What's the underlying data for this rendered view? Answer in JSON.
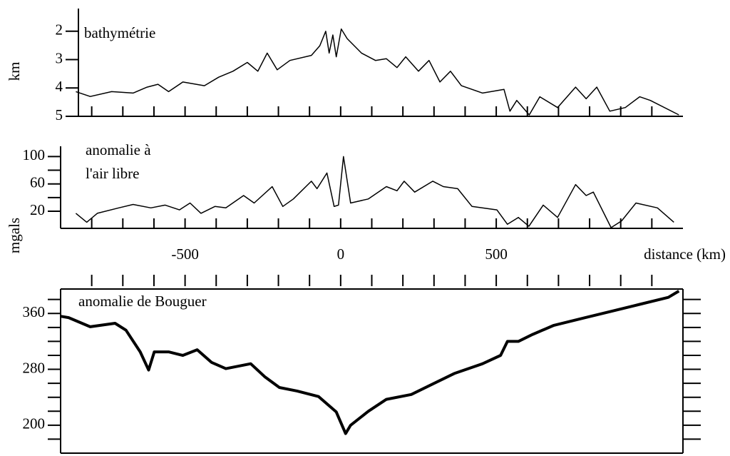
{
  "chart_data": [
    {
      "type": "line",
      "title": "bathymétrie",
      "ylabel": "km",
      "color": "#000000",
      "xlim": [
        -900,
        1100
      ],
      "ylim": [
        5,
        1.2
      ],
      "yticks": [
        2,
        3,
        4,
        5
      ],
      "xminor": [
        -800,
        -700,
        -600,
        -500,
        -400,
        -300,
        -200,
        -100,
        0,
        100,
        200,
        300,
        400,
        500,
        600,
        700,
        800,
        900,
        1000
      ],
      "x": [
        -851,
        -805,
        -736,
        -667,
        -622,
        -587,
        -553,
        -507,
        -438,
        -392,
        -346,
        -300,
        -266,
        -236,
        -204,
        -163,
        -94,
        -67,
        -48,
        -37,
        -25,
        -14,
        2,
        21,
        67,
        112,
        147,
        181,
        209,
        250,
        284,
        319,
        353,
        388,
        456,
        525,
        544,
        566,
        606,
        640,
        697,
        755,
        789,
        823,
        865,
        915,
        961,
        995,
        1087
      ],
      "values": [
        4.13,
        4.3,
        4.13,
        4.18,
        3.97,
        3.87,
        4.13,
        3.79,
        3.92,
        3.62,
        3.41,
        3.1,
        3.41,
        2.77,
        3.36,
        3.03,
        2.85,
        2.51,
        2.0,
        2.77,
        2.13,
        2.9,
        1.92,
        2.26,
        2.77,
        3.03,
        2.97,
        3.28,
        2.9,
        3.41,
        3.03,
        3.79,
        3.41,
        3.92,
        4.18,
        4.05,
        4.82,
        4.44,
        4.95,
        4.31,
        4.69,
        3.97,
        4.38,
        3.97,
        4.82,
        4.69,
        4.31,
        4.44,
        4.95
      ]
    },
    {
      "type": "line",
      "title": [
        "anomalie à",
        "l'air libre"
      ],
      "ylabel": "mgals",
      "xlabel": "distance (km)",
      "color": "#000000",
      "xlim": [
        -900,
        1100
      ],
      "ylim": [
        -5,
        115
      ],
      "yticks": [
        20,
        60,
        100
      ],
      "yminor": [
        40,
        80
      ],
      "xticks": [
        -500,
        0,
        500
      ],
      "xminor": [
        -800,
        -700,
        -600,
        -500,
        -400,
        -300,
        -200,
        -100,
        0,
        100,
        200,
        300,
        400,
        500,
        600,
        700,
        800,
        900,
        1000
      ],
      "x": [
        -851,
        -816,
        -782,
        -713,
        -667,
        -610,
        -564,
        -518,
        -484,
        -449,
        -404,
        -369,
        -312,
        -278,
        -220,
        -186,
        -152,
        -94,
        -76,
        -44,
        -21,
        -7,
        9,
        32,
        89,
        147,
        181,
        204,
        238,
        296,
        330,
        376,
        422,
        502,
        536,
        571,
        605,
        651,
        697,
        755,
        789,
        812,
        869,
        903,
        949,
        1018,
        1071
      ],
      "values": [
        17,
        4,
        17,
        25,
        30,
        25,
        29,
        22,
        32,
        17,
        27,
        25,
        43,
        32,
        56,
        27,
        38,
        64,
        53,
        76,
        27,
        29,
        100,
        32,
        38,
        56,
        50,
        64,
        48,
        64,
        56,
        53,
        27,
        22,
        1,
        11,
        -2,
        29,
        11,
        59,
        43,
        48,
        -4,
        6,
        32,
        25,
        4
      ]
    },
    {
      "type": "line",
      "title": "anomalie de Bouguer",
      "color": "#000000",
      "xlim": [
        -900,
        1100
      ],
      "ylim": [
        160,
        395
      ],
      "yticks": [
        200,
        280,
        360
      ],
      "yminor": [
        180,
        220,
        240,
        260,
        300,
        320,
        340,
        380
      ],
      "xminor": [
        -800,
        -700,
        -600,
        -500,
        -400,
        -300,
        -200,
        -100,
        0,
        100,
        200,
        300,
        400,
        500,
        600,
        700,
        800,
        900,
        1000
      ],
      "x": [
        -900,
        -874,
        -805,
        -725,
        -690,
        -644,
        -617,
        -599,
        -553,
        -507,
        -461,
        -415,
        -369,
        -289,
        -243,
        -197,
        -140,
        -71,
        -14,
        16,
        32,
        89,
        147,
        227,
        296,
        365,
        456,
        514,
        536,
        571,
        617,
        685,
        777,
        869,
        961,
        1053,
        1087
      ],
      "values": [
        356,
        354,
        341,
        346,
        336,
        305,
        279,
        305,
        305,
        300,
        308,
        290,
        281,
        288,
        269,
        254,
        249,
        241,
        219,
        188,
        200,
        220,
        237,
        244,
        259,
        274,
        288,
        300,
        320,
        320,
        330,
        343,
        353,
        363,
        373,
        383,
        392
      ]
    }
  ]
}
